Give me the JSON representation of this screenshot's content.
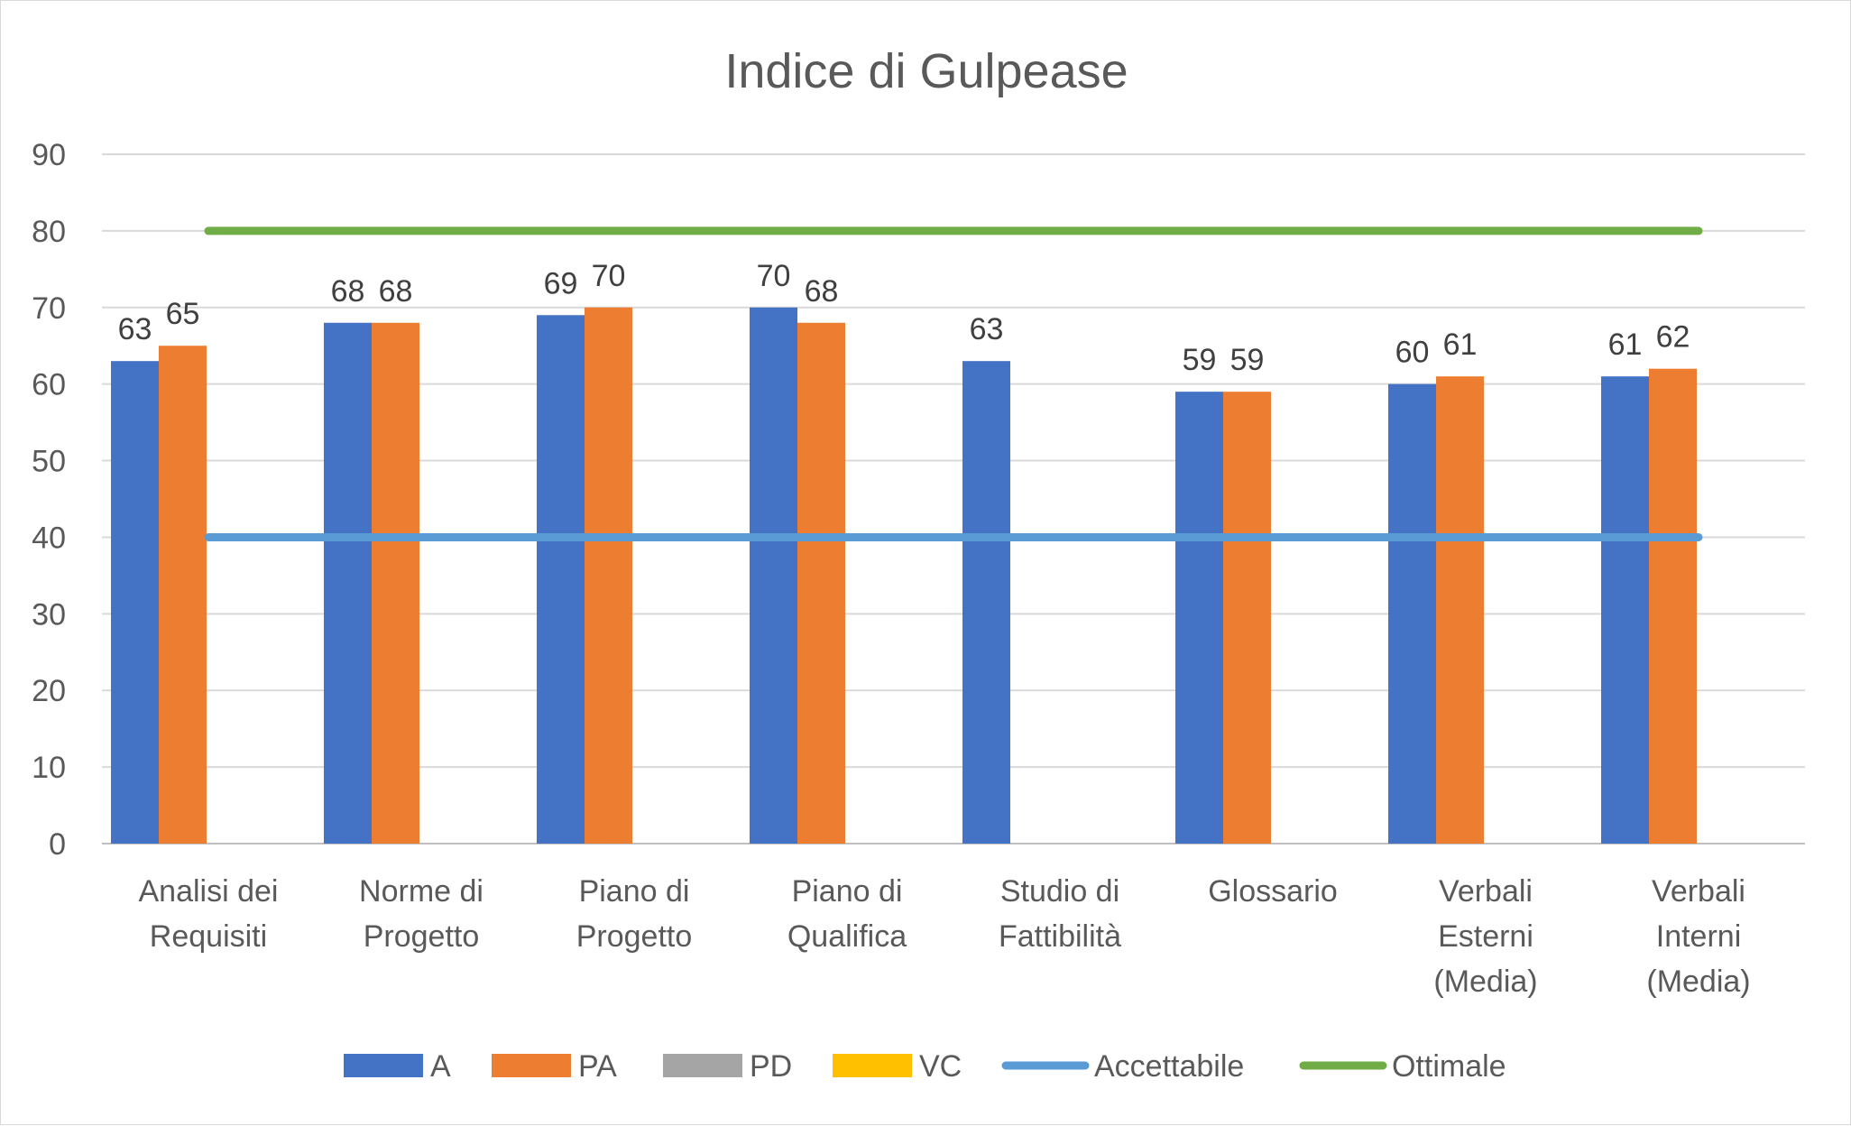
{
  "chart_data": {
    "type": "bar",
    "title": "Indice di Gulpease",
    "xlabel": "",
    "ylabel": "",
    "ylim": [
      0,
      90
    ],
    "ytick_step": 10,
    "grid": true,
    "legend_position": "bottom",
    "categories": [
      [
        "Analisi dei",
        "Requisiti"
      ],
      [
        "Norme di",
        "Progetto"
      ],
      [
        "Piano di",
        "Progetto"
      ],
      [
        "Piano di",
        "Qualifica"
      ],
      [
        "Studio di",
        "Fattibilità"
      ],
      [
        "Glossario"
      ],
      [
        "Verbali",
        "Esterni",
        "(Media)"
      ],
      [
        "Verbali",
        "Interni",
        "(Media)"
      ]
    ],
    "series": [
      {
        "name": "A",
        "color": "#4472c4",
        "values": [
          63,
          68,
          69,
          70,
          63,
          59,
          60,
          61
        ]
      },
      {
        "name": "PA",
        "color": "#ed7d31",
        "values": [
          65,
          68,
          70,
          68,
          null,
          59,
          61,
          62
        ]
      },
      {
        "name": "PD",
        "color": "#a5a5a5",
        "values": [
          null,
          null,
          null,
          null,
          null,
          null,
          null,
          null
        ]
      },
      {
        "name": "VC",
        "color": "#ffc000",
        "values": [
          null,
          null,
          null,
          null,
          null,
          null,
          null,
          null
        ]
      }
    ],
    "lines": [
      {
        "name": "Accettabile",
        "color": "#5b9bd5",
        "value": 40
      },
      {
        "name": "Ottimale",
        "color": "#70ad47",
        "value": 80
      }
    ]
  }
}
